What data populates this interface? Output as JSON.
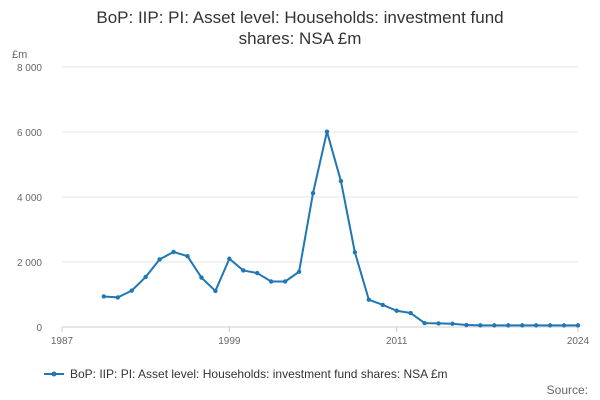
{
  "chart_data": {
    "type": "line",
    "title_line1": "BoP: IIP: PI: Asset level: Households: investment fund",
    "title_line2": "shares: NSA £m",
    "unit_label": "£m",
    "x_ticks": [
      "1987",
      "1999",
      "2011",
      "2024"
    ],
    "y_ticks": [
      "0",
      "2 000",
      "4 000",
      "6 000",
      "8 000"
    ],
    "ylim": [
      0,
      8000
    ],
    "xlim": [
      1987,
      2024
    ],
    "grid": true,
    "legend_position": "bottom",
    "source_label": "Source:",
    "series": [
      {
        "name": "BoP: IIP: PI: Asset level: Households: investment fund shares: NSA £m",
        "color": "#1f77b4",
        "x": [
          1990,
          1991,
          1992,
          1993,
          1994,
          1995,
          1996,
          1997,
          1998,
          1999,
          2000,
          2001,
          2002,
          2003,
          2004,
          2005,
          2006,
          2007,
          2008,
          2009,
          2010,
          2011,
          2012,
          2013,
          2014,
          2015,
          2016,
          2017,
          2018,
          2019,
          2020,
          2021,
          2022,
          2023,
          2024
        ],
        "values": [
          940,
          910,
          1120,
          1540,
          2080,
          2310,
          2180,
          1520,
          1110,
          2100,
          1740,
          1660,
          1400,
          1400,
          1700,
          4120,
          6010,
          4490,
          2300,
          840,
          680,
          500,
          430,
          120,
          110,
          100,
          60,
          50,
          50,
          50,
          50,
          50,
          50,
          50,
          50
        ]
      }
    ]
  }
}
